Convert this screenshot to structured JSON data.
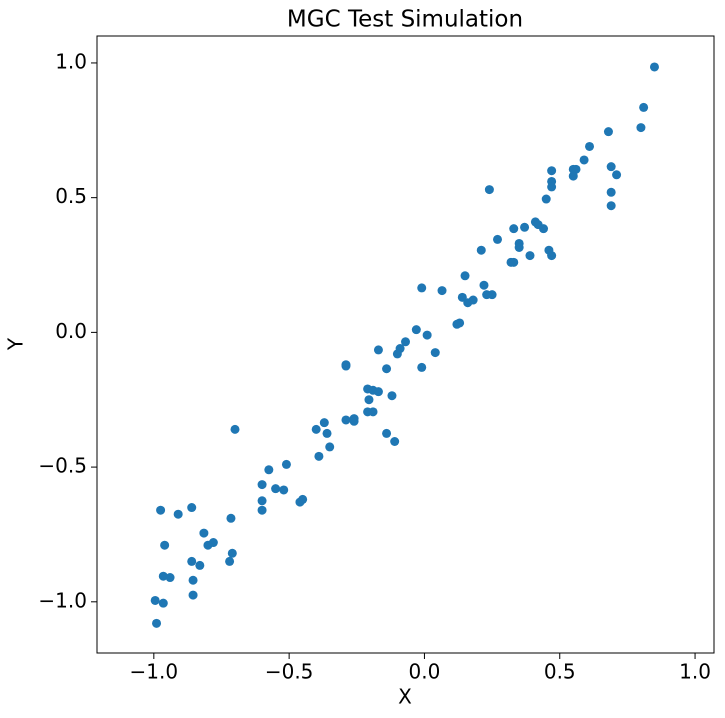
{
  "chart_data": {
    "type": "scatter",
    "title": "MGC Test Simulation",
    "x_label": "X",
    "y_label": "Y",
    "color": "#1f77b4",
    "grid": false,
    "xlim": [
      -1.21,
      1.07
    ],
    "ylim": [
      -1.19,
      1.1
    ],
    "xticks": [
      {
        "value": -1.0,
        "label": "−1.0"
      },
      {
        "value": -0.5,
        "label": "−0.5"
      },
      {
        "value": 0,
        "label": "0.0"
      },
      {
        "value": 0.5,
        "label": "0.5"
      },
      {
        "value": 1.0,
        "label": "1.0"
      }
    ],
    "yticks": [
      {
        "value": -1.0,
        "label": "−1.0"
      },
      {
        "value": -0.5,
        "label": "−0.5"
      },
      {
        "value": 0,
        "label": "0.0"
      },
      {
        "value": 0.5,
        "label": "0.5"
      },
      {
        "value": 1.0,
        "label": "1.0"
      }
    ],
    "x": [
      0.85,
      0.81,
      0.8,
      0.68,
      0.61,
      0.59,
      0.56,
      0.55,
      0.55,
      0.47,
      0.47,
      0.47,
      0.69,
      0.71,
      0.69,
      0.69,
      0.45,
      0.24,
      0.44,
      0.41,
      0.42,
      0.37,
      0.33,
      0.35,
      0.35,
      0.39,
      0.46,
      0.47,
      0.27,
      0.21,
      0.32,
      0.33,
      0.22,
      0.25,
      0.23,
      0.15,
      0.14,
      0.16,
      0.18,
      0.13,
      0.12,
      0.065,
      -0.01,
      -0.03,
      0.01,
      0.04,
      -0.01,
      -0.07,
      -0.09,
      -0.1,
      -0.17,
      -0.14,
      -0.29,
      -0.29,
      -0.21,
      -0.19,
      -0.17,
      -0.205,
      -0.21,
      -0.19,
      -0.12,
      -0.14,
      -0.11,
      -0.29,
      -0.26,
      -0.26,
      -0.37,
      -0.4,
      -0.36,
      -0.35,
      -0.39,
      -0.7,
      -0.51,
      -0.575,
      -0.6,
      -0.55,
      -0.52,
      -0.45,
      -0.46,
      -0.6,
      -0.6,
      -0.86,
      -0.91,
      -0.975,
      -0.715,
      -0.815,
      -0.78,
      -0.8,
      -0.96,
      -0.71,
      -0.72,
      -0.86,
      -0.83,
      -0.965,
      -0.94,
      -0.855,
      -0.855,
      -0.995,
      -0.965,
      -0.99
    ],
    "values": [
      0.985,
      0.835,
      0.76,
      0.745,
      0.69,
      0.64,
      0.605,
      0.605,
      0.58,
      0.6,
      0.56,
      0.54,
      0.615,
      0.585,
      0.52,
      0.47,
      0.495,
      0.53,
      0.385,
      0.41,
      0.4,
      0.39,
      0.385,
      0.33,
      0.315,
      0.285,
      0.305,
      0.285,
      0.345,
      0.305,
      0.26,
      0.26,
      0.175,
      0.14,
      0.14,
      0.21,
      0.13,
      0.11,
      0.12,
      0.035,
      0.03,
      0.155,
      0.165,
      0.01,
      -0.01,
      -0.075,
      -0.13,
      -0.035,
      -0.06,
      -0.08,
      -0.065,
      -0.135,
      -0.12,
      -0.125,
      -0.21,
      -0.215,
      -0.22,
      -0.25,
      -0.295,
      -0.295,
      -0.235,
      -0.375,
      -0.405,
      -0.325,
      -0.32,
      -0.33,
      -0.335,
      -0.36,
      -0.375,
      -0.425,
      -0.46,
      -0.36,
      -0.49,
      -0.51,
      -0.565,
      -0.58,
      -0.585,
      -0.62,
      -0.63,
      -0.625,
      -0.66,
      -0.65,
      -0.675,
      -0.66,
      -0.69,
      -0.745,
      -0.78,
      -0.79,
      -0.79,
      -0.82,
      -0.85,
      -0.85,
      -0.865,
      -0.905,
      -0.91,
      -0.92,
      -0.975,
      -0.995,
      -1.005,
      -1.08
    ]
  }
}
